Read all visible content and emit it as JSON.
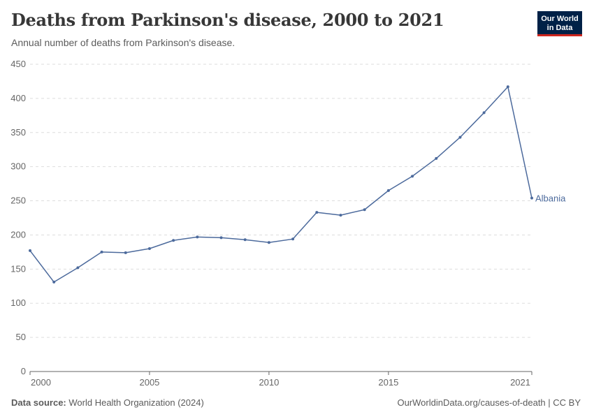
{
  "header": {
    "title": "Deaths from Parkinson's disease, 2000 to 2021",
    "subtitle": "Annual number of deaths from Parkinson's disease."
  },
  "logo": {
    "line1": "Our World",
    "line2": "in Data"
  },
  "footer": {
    "source_label": "Data source:",
    "source_text": "World Health Organization (2024)",
    "url": "OurWorldinData.org/causes-of-death | CC BY"
  },
  "colors": {
    "series": "#4c6a9c",
    "grid": "#dddddd",
    "axis": "#666666",
    "logo_bg": "#002147",
    "logo_accent": "#ce261e"
  },
  "chart_data": {
    "type": "line",
    "x": [
      2000,
      2001,
      2002,
      2003,
      2004,
      2005,
      2006,
      2007,
      2008,
      2009,
      2010,
      2011,
      2012,
      2013,
      2014,
      2015,
      2016,
      2017,
      2018,
      2019,
      2020,
      2021
    ],
    "series": [
      {
        "name": "Albania",
        "values": [
          177,
          131,
          152,
          175,
          174,
          180,
          192,
          197,
          196,
          193,
          189,
          194,
          233,
          229,
          237,
          265,
          286,
          312,
          343,
          379,
          417,
          254
        ]
      }
    ],
    "ylim": [
      0,
      450
    ],
    "yticks": [
      0,
      50,
      100,
      150,
      200,
      250,
      300,
      350,
      400,
      450
    ],
    "xticks": [
      2000,
      2005,
      2010,
      2015,
      2021
    ],
    "grid": "horizontal-dashed",
    "legend": "end-of-line label"
  }
}
